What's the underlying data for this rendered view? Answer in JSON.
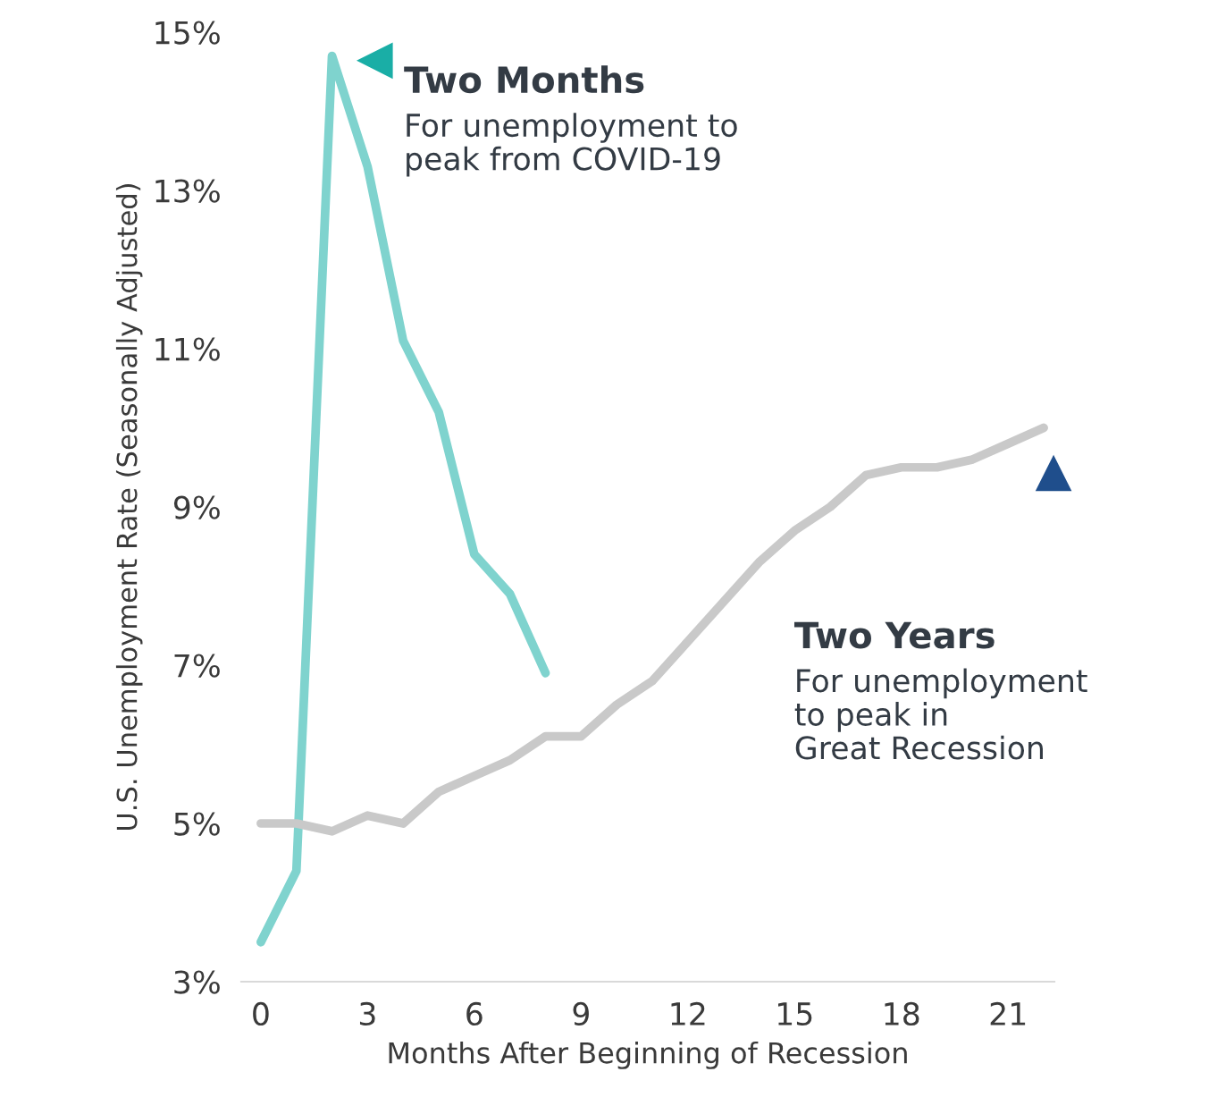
{
  "chart_data": {
    "type": "line",
    "xlabel": "Months After Beginning of Recession",
    "ylabel": "U.S. Unemployment Rate (Seasonally Adjusted)",
    "series": [
      {
        "color": "#7fd3ce",
        "x": [
          0,
          1,
          2,
          3,
          4,
          5,
          6,
          7,
          8
        ],
        "values": [
          3.5,
          4.4,
          14.7,
          13.3,
          11.1,
          10.2,
          8.4,
          7.9,
          6.9
        ]
      },
      {
        "color": "#c9c9c9",
        "x": [
          0,
          1,
          2,
          3,
          4,
          5,
          6,
          7,
          8,
          9,
          10,
          11,
          12,
          13,
          14,
          15,
          16,
          17,
          18,
          19,
          20,
          21,
          22
        ],
        "values": [
          5.0,
          5.0,
          4.9,
          5.1,
          5.0,
          5.4,
          5.6,
          5.8,
          6.1,
          6.1,
          6.5,
          6.8,
          7.3,
          7.8,
          8.3,
          8.7,
          9.0,
          9.4,
          9.5,
          9.5,
          9.6,
          9.8,
          10.0
        ]
      }
    ],
    "xlim": [
      -0.55,
      22.3
    ],
    "xticks": [
      0,
      3,
      6,
      9,
      12,
      15,
      18,
      21
    ],
    "ylim": [
      3,
      15
    ],
    "yticks": [
      {
        "value": 3,
        "label": "3%"
      },
      {
        "value": 5,
        "label": "5%"
      },
      {
        "value": 7,
        "label": "7%"
      },
      {
        "value": 9,
        "label": "9%"
      },
      {
        "value": 11,
        "label": "11%"
      },
      {
        "value": 13,
        "label": "13%"
      },
      {
        "value": 15,
        "label": "15%"
      }
    ],
    "grid": false,
    "legend": false,
    "annotations": [
      "Two Months",
      "For unemployment to\npeak from COVID-19",
      "Two Years",
      "For unemployment\nto peak in\nGreat Recession"
    ]
  }
}
